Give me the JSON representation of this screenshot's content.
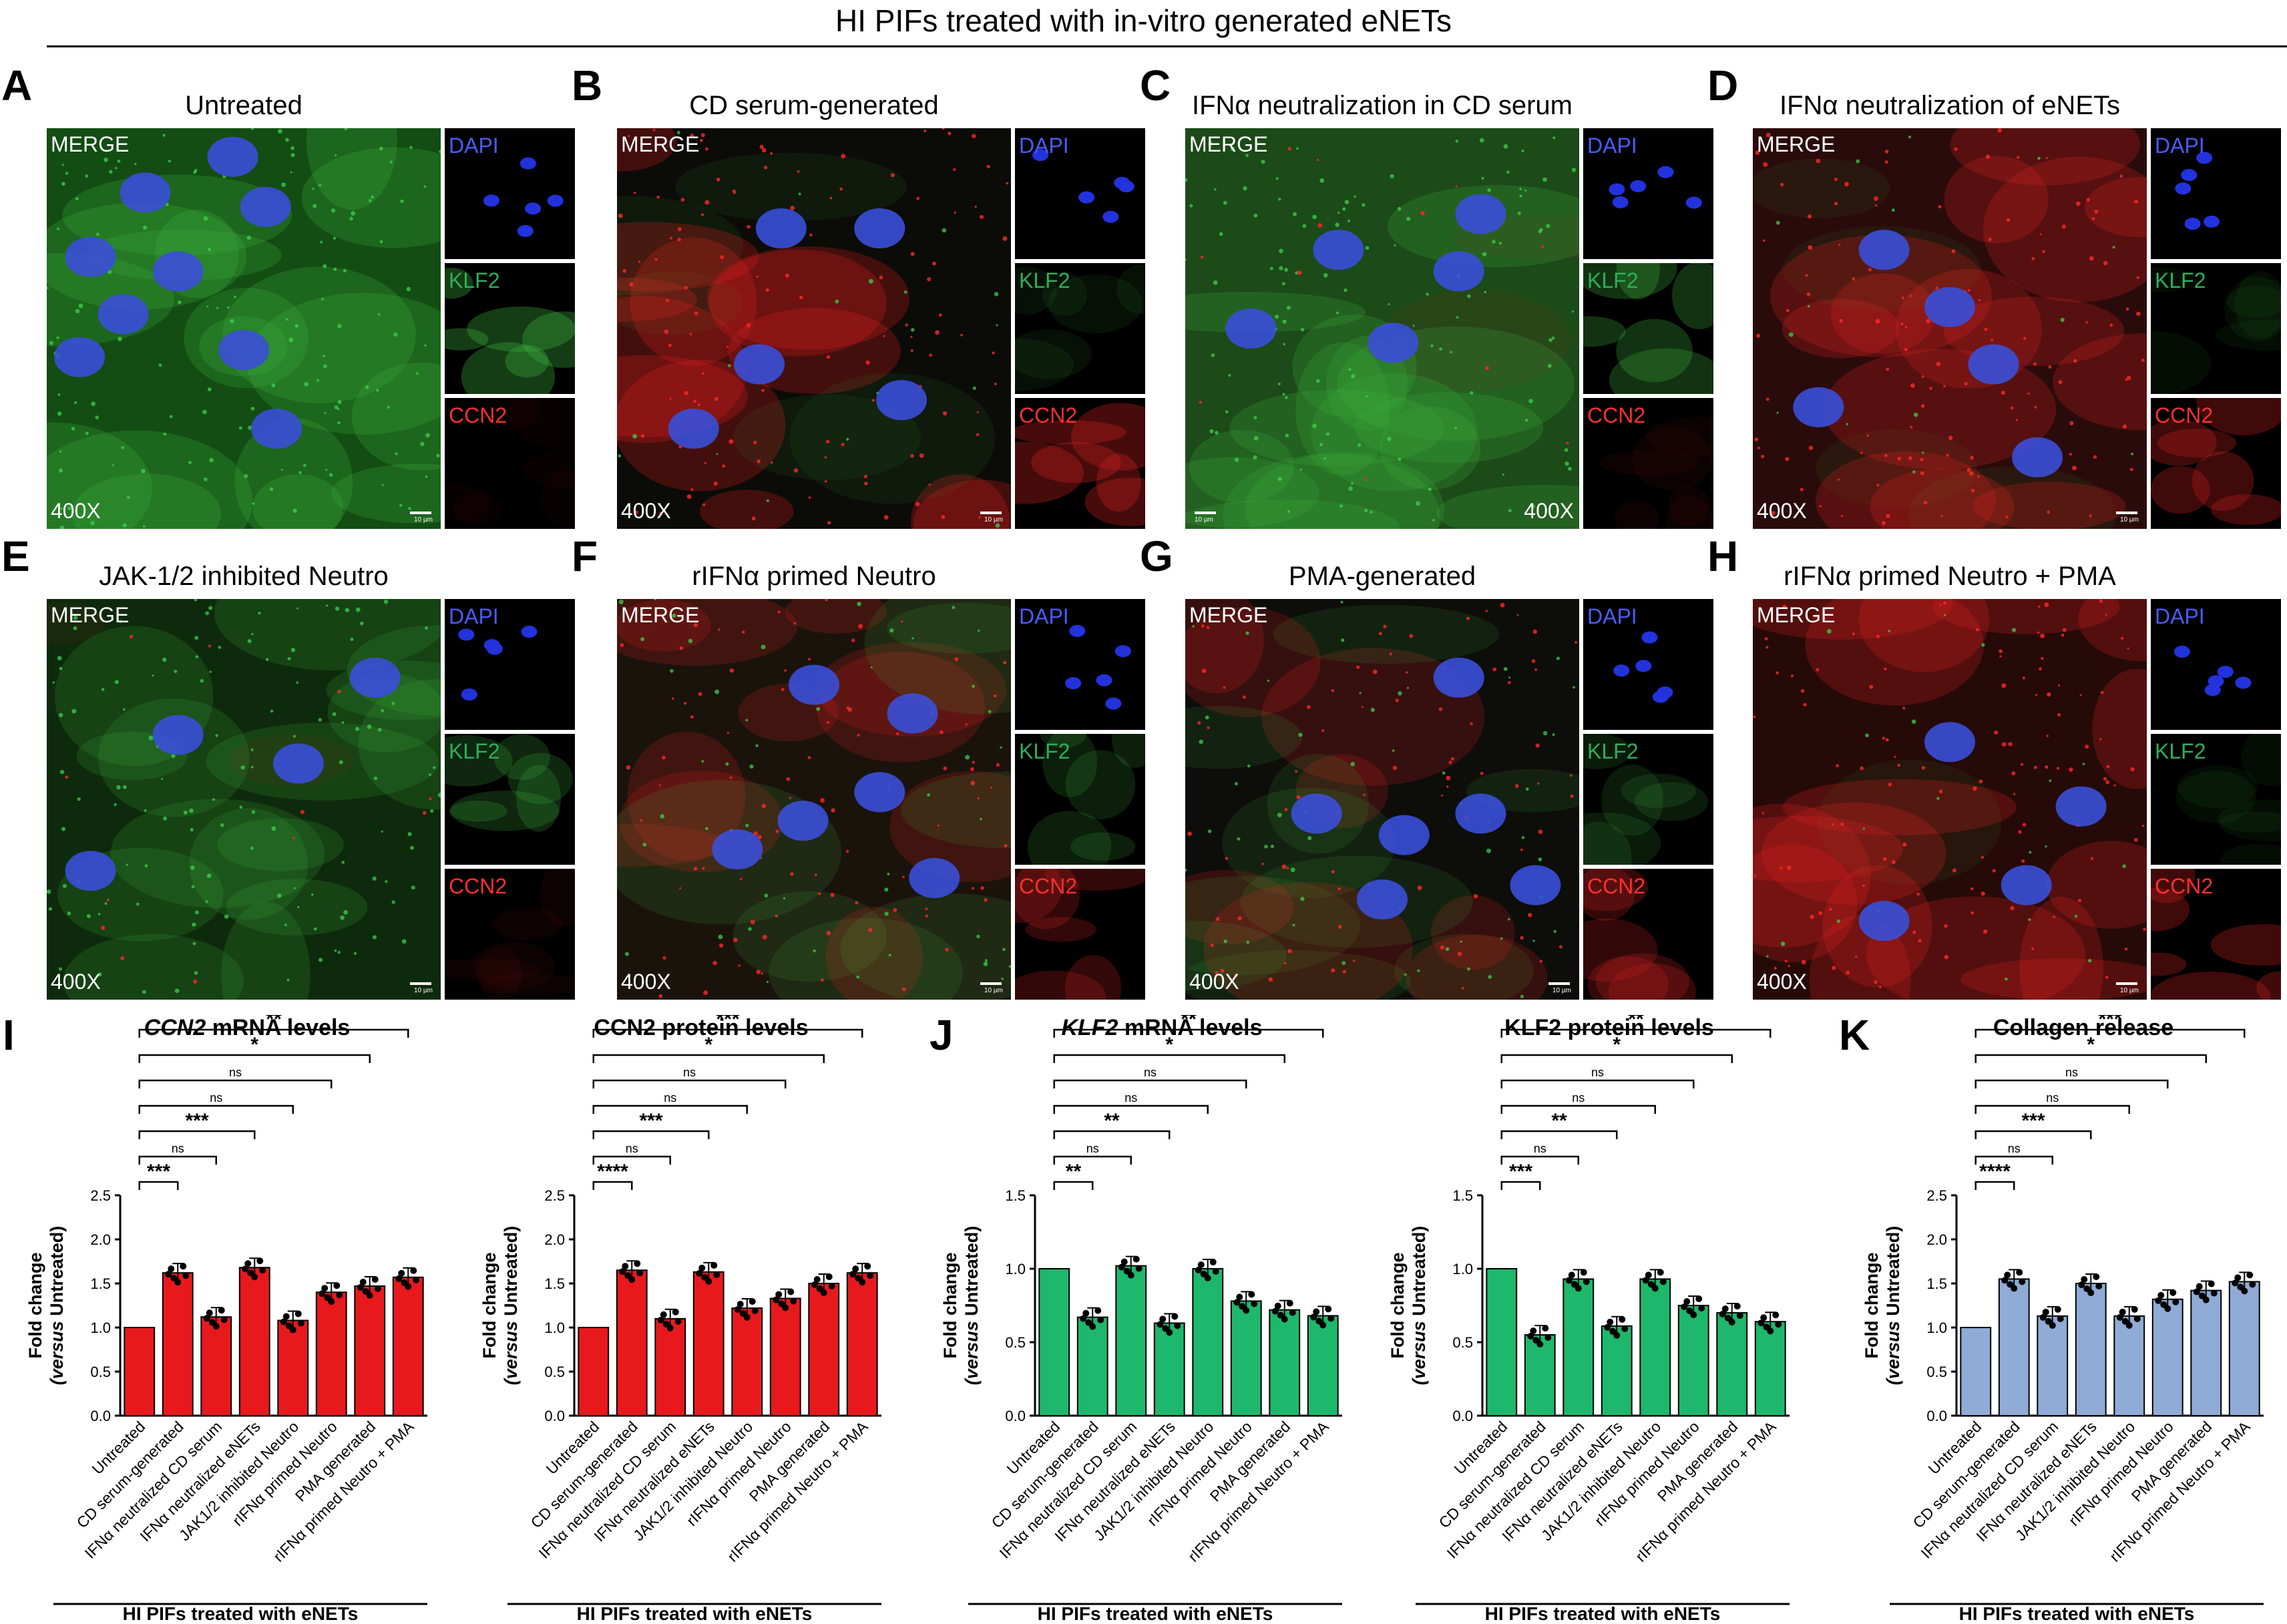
{
  "figure_title": "HI PIFs  treated with in-vitro generated eNETs",
  "labels": {
    "merge": "MERGE",
    "magnification": "400X",
    "scale_bar": "10 µm",
    "channels": [
      "DAPI",
      "KLF2",
      "CCN2"
    ]
  },
  "channel_colors": {
    "DAPI": "#4a5cff",
    "KLF2": "#2fae5a",
    "CCN2": "#ff3030"
  },
  "panels": [
    {
      "letter": "A",
      "title": "Untreated"
    },
    {
      "letter": "B",
      "title": "CD serum-generated"
    },
    {
      "letter": "C",
      "title": "IFNα neutralization in CD serum"
    },
    {
      "letter": "D",
      "title": "IFNα neutralization of eNETs"
    },
    {
      "letter": "E",
      "title": "JAK-1/2 inhibited Neutro"
    },
    {
      "letter": "F",
      "title": "rIFNα primed Neutro"
    },
    {
      "letter": "G",
      "title": "PMA-generated"
    },
    {
      "letter": "H",
      "title": "rIFNα primed Neutro + PMA"
    }
  ],
  "chart_letters": {
    "I": "I",
    "J": "J",
    "K": "K"
  },
  "chart_data": [
    {
      "type": "bar",
      "title_italic": "CCN2",
      "title_rest": " mRNA levels",
      "ylabel": "Fold change",
      "ylabel_rest": " Untreated)",
      "ylabel_italic": "(versus",
      "xfooter": "HI PIFs treated with eNETs",
      "color": "#e8191d",
      "ylim": [
        0,
        2.5
      ],
      "yticks": [
        "0.0",
        "0.5",
        "1.0",
        "1.5",
        "2.0",
        "2.5"
      ],
      "categories": [
        "Untreated",
        "CD serum-generated",
        "IFNα neutralized CD serum",
        "IFNα neutralized eNETs",
        "JAK1/2 inhibited Neutro",
        "rIFNα primed Neutro",
        "PMA generated",
        "rIFNα primed Neutro + PMA"
      ],
      "values": [
        1.0,
        1.62,
        1.12,
        1.68,
        1.08,
        1.4,
        1.47,
        1.57
      ],
      "significance": [
        "***",
        "ns",
        "***",
        "ns",
        "ns",
        "*",
        "**"
      ]
    },
    {
      "type": "bar",
      "title_italic": "",
      "title_rest": "CCN2 protein levels",
      "ylabel": "Fold change",
      "ylabel_italic": "(versus",
      "ylabel_rest": " Untreated)",
      "xfooter": "HI PIFs treated with eNETs",
      "color": "#e8191d",
      "ylim": [
        0,
        2.5
      ],
      "yticks": [
        "0.0",
        "0.5",
        "1.0",
        "1.5",
        "2.0",
        "2.5"
      ],
      "categories": [
        "Untreated",
        "CD serum-generated",
        "IFNα neutralized CD serum",
        "IFNα neutralized eNETs",
        "JAK1/2 inhibited Neutro",
        "rIFNα primed Neutro",
        "PMA generated",
        "rIFNα primed Neutro + PMA"
      ],
      "values": [
        1.0,
        1.65,
        1.1,
        1.63,
        1.22,
        1.33,
        1.5,
        1.62
      ],
      "significance": [
        "****",
        "ns",
        "***",
        "ns",
        "ns",
        "*",
        "***"
      ]
    },
    {
      "type": "bar",
      "title_italic": "KLF2",
      "title_rest": " mRNA levels",
      "ylabel": "Fold change",
      "ylabel_italic": "(versus",
      "ylabel_rest": " Untreated)",
      "xfooter": "HI PIFs treated with eNETs",
      "color": "#1db86c",
      "ylim": [
        0,
        1.5
      ],
      "yticks": [
        "0.0",
        "0.5",
        "1.0",
        "1.5"
      ],
      "categories": [
        "Untreated",
        "CD serum-generated",
        "IFNα neutralized CD serum",
        "IFNα neutralized eNETs",
        "JAK1/2 inhibited Neutro",
        "rIFNα primed Neutro",
        "PMA generated",
        "rIFNα primed Neutro + PMA"
      ],
      "values": [
        1.0,
        0.67,
        1.02,
        0.63,
        1.0,
        0.78,
        0.72,
        0.68
      ],
      "significance": [
        "**",
        "ns",
        "**",
        "ns",
        "ns",
        "*",
        "**"
      ]
    },
    {
      "type": "bar",
      "title_italic": "",
      "title_rest": "KLF2 protein levels",
      "ylabel": "Fold change",
      "ylabel_italic": "(versus",
      "ylabel_rest": " Untreated)",
      "xfooter": "HI PIFs treated with eNETs",
      "color": "#1db86c",
      "ylim": [
        0,
        1.5
      ],
      "yticks": [
        "0.0",
        "0.5",
        "1.0",
        "1.5"
      ],
      "categories": [
        "Untreated",
        "CD serum-generated",
        "IFNα neutralized CD serum",
        "IFNα neutralized eNETs",
        "JAK1/2 inhibited Neutro",
        "rIFNα primed Neutro",
        "PMA generated",
        "rIFNα primed Neutro + PMA"
      ],
      "values": [
        1.0,
        0.55,
        0.93,
        0.61,
        0.93,
        0.75,
        0.7,
        0.64
      ],
      "significance": [
        "***",
        "ns",
        "**",
        "ns",
        "ns",
        "*",
        "**"
      ]
    },
    {
      "type": "bar",
      "title_italic": "",
      "title_rest": "Collagen release",
      "ylabel": "Fold change",
      "ylabel_italic": "(versus",
      "ylabel_rest": " Untreated)",
      "xfooter": "HI PIFs treated with eNETs",
      "color": "#8fabd6",
      "ylim": [
        0,
        2.5
      ],
      "yticks": [
        "0.0",
        "0.5",
        "1.0",
        "1.5",
        "2.0",
        "2.5"
      ],
      "categories": [
        "Untreated",
        "CD serum-generated",
        "IFNα neutralized CD serum",
        "IFNα neutralized eNETs",
        "JAK1/2 inhibited Neutro",
        "rIFNα primed Neutro",
        "PMA generated",
        "rIFNα primed Neutro + PMA"
      ],
      "values": [
        1.0,
        1.55,
        1.13,
        1.5,
        1.13,
        1.32,
        1.42,
        1.52
      ],
      "significance": [
        "****",
        "ns",
        "***",
        "ns",
        "ns",
        "*",
        "***"
      ]
    }
  ]
}
